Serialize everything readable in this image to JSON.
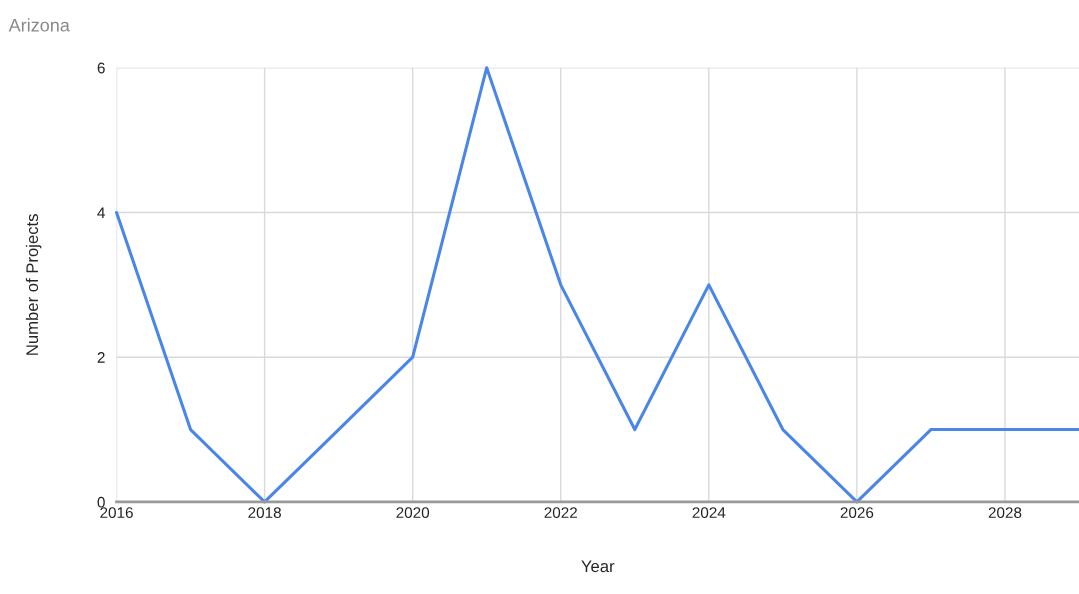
{
  "chart_data": {
    "type": "line",
    "subtitle": "Arizona",
    "xlabel": "Year",
    "ylabel": "Number of Projects",
    "x": [
      2016,
      2017,
      2018,
      2019,
      2020,
      2021,
      2022,
      2023,
      2024,
      2025,
      2026,
      2027,
      2028,
      2029
    ],
    "series": [
      {
        "color": "#4a86e8",
        "values": [
          4,
          1,
          0,
          1,
          2,
          6,
          3,
          1,
          3,
          1,
          0,
          1,
          1,
          1
        ]
      }
    ],
    "xlim": [
      2016,
      2029
    ],
    "xticks": [
      2016,
      2018,
      2020,
      2022,
      2024,
      2026,
      2028
    ],
    "ylim": [
      0,
      6
    ],
    "yticks": [
      0,
      2,
      4,
      6
    ],
    "grid": true,
    "marker": "none",
    "line_style": "solid"
  }
}
